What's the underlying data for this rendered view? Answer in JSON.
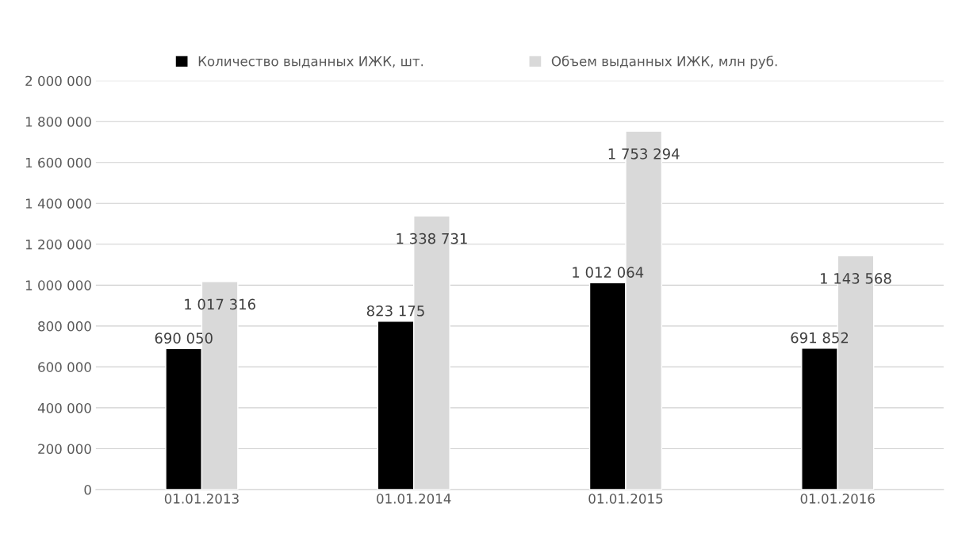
{
  "chart_data": {
    "type": "bar",
    "categories": [
      "01.01.2013",
      "01.01.2014",
      "01.01.2015",
      "01.01.2016"
    ],
    "series": [
      {
        "name": "Количество выданных ИЖК, шт.",
        "color": "#000000",
        "values": [
          690050,
          823175,
          1012064,
          691852
        ],
        "value_labels": [
          "690 050",
          "823 175",
          "1 012 064",
          "691 852"
        ]
      },
      {
        "name": "Объем выданных ИЖК, млн руб.",
        "color": "#d9d9d9",
        "values": [
          1017316,
          1338731,
          1753294,
          1143568
        ],
        "value_labels": [
          "1 017 316",
          "1 338 731",
          "1 753 294",
          "1 143 568"
        ]
      }
    ],
    "ylim": [
      0,
      2000000
    ],
    "yticks": [
      {
        "value": 0,
        "label": "0"
      },
      {
        "value": 200000,
        "label": "200 000"
      },
      {
        "value": 400000,
        "label": "400 000"
      },
      {
        "value": 600000,
        "label": "600 000"
      },
      {
        "value": 800000,
        "label": "800 000"
      },
      {
        "value": 1000000,
        "label": "1 000 000"
      },
      {
        "value": 1200000,
        "label": "1 200 000"
      },
      {
        "value": 1400000,
        "label": "1 400 000"
      },
      {
        "value": 1600000,
        "label": "1 600 000"
      },
      {
        "value": 1800000,
        "label": "1 800 000"
      },
      {
        "value": 2000000,
        "label": "2 000 000"
      }
    ],
    "grid": "y",
    "legend": "top"
  }
}
